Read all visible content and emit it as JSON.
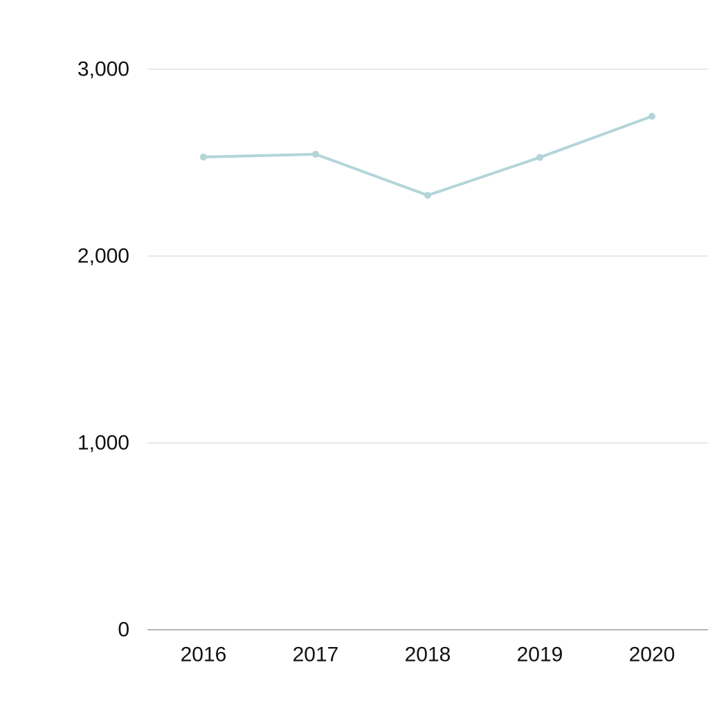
{
  "chart_data": {
    "type": "line",
    "title": "",
    "xlabel": "",
    "ylabel": "",
    "x": [
      "2016",
      "2017",
      "2018",
      "2019",
      "2020"
    ],
    "series": [
      {
        "values": [
          2530,
          2545,
          2325,
          2528,
          2748
        ],
        "color": "#b3d5d8"
      }
    ],
    "ylim": [
      0,
      3000
    ],
    "yticks": [
      0,
      1000,
      2000,
      3000
    ],
    "ytick_labels": [
      "0",
      "1,000",
      "2,000",
      "3,000"
    ],
    "grid": true,
    "legend": "none",
    "colors": {
      "gridline": "#d0d0d0",
      "baseline": "#8a8a8a",
      "tick_text": "#111111"
    }
  }
}
